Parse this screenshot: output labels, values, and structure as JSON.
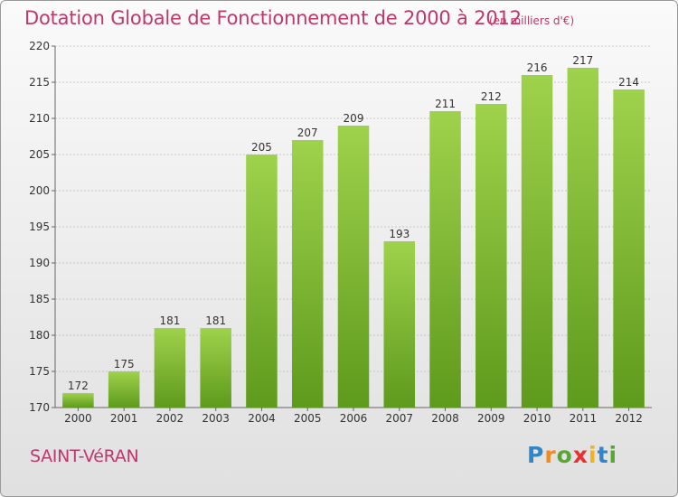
{
  "title": "Dotation Globale de Fonctionnement de 2000 à 2012",
  "unit": "(en milliers d'€)",
  "commune": "SAINT-VéRAN",
  "logo": [
    "P",
    "r",
    "o",
    "x",
    "i",
    "t",
    "i"
  ],
  "colors": {
    "bar": "#8cc63f",
    "bar_dark": "#5e9a1c",
    "accent": "#c0386a"
  },
  "chart_data": {
    "type": "bar",
    "categories": [
      "2000",
      "2001",
      "2002",
      "2003",
      "2004",
      "2005",
      "2006",
      "2007",
      "2008",
      "2009",
      "2010",
      "2011",
      "2012"
    ],
    "values": [
      172,
      175,
      181,
      181,
      205,
      207,
      209,
      193,
      211,
      212,
      216,
      217,
      214
    ],
    "data_labels": [
      "172",
      "175",
      "181",
      "181",
      "205",
      "207",
      "209",
      "193",
      "211",
      "212",
      "216",
      "217",
      "214"
    ],
    "ylim": [
      170,
      220
    ],
    "yticks": [
      170,
      175,
      180,
      185,
      190,
      195,
      200,
      205,
      210,
      215,
      220
    ],
    "grid": true,
    "legend": "none"
  }
}
